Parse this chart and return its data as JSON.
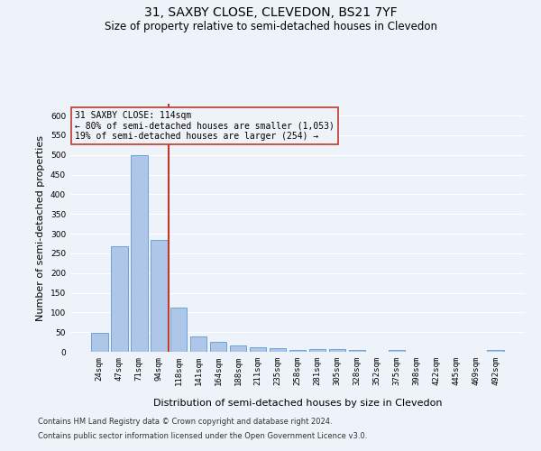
{
  "title": "31, SAXBY CLOSE, CLEVEDON, BS21 7YF",
  "subtitle": "Size of property relative to semi-detached houses in Clevedon",
  "xlabel": "Distribution of semi-detached houses by size in Clevedon",
  "ylabel": "Number of semi-detached properties",
  "categories": [
    "24sqm",
    "47sqm",
    "71sqm",
    "94sqm",
    "118sqm",
    "141sqm",
    "164sqm",
    "188sqm",
    "211sqm",
    "235sqm",
    "258sqm",
    "281sqm",
    "305sqm",
    "328sqm",
    "352sqm",
    "375sqm",
    "398sqm",
    "422sqm",
    "445sqm",
    "469sqm",
    "492sqm"
  ],
  "values": [
    48,
    267,
    500,
    283,
    113,
    40,
    26,
    15,
    12,
    10,
    5,
    8,
    8,
    5,
    0,
    4,
    0,
    0,
    0,
    0,
    5
  ],
  "bar_color": "#aec6e8",
  "bar_edge_color": "#5b9bd5",
  "property_line_index": 4,
  "property_line_color": "#c0392b",
  "annotation_line1": "31 SAXBY CLOSE: 114sqm",
  "annotation_line2": "← 80% of semi-detached houses are smaller (1,053)",
  "annotation_line3": "19% of semi-detached houses are larger (254) →",
  "annotation_box_edge_color": "#c0392b",
  "ylim": [
    0,
    630
  ],
  "yticks": [
    0,
    50,
    100,
    150,
    200,
    250,
    300,
    350,
    400,
    450,
    500,
    550,
    600
  ],
  "footer_line1": "Contains HM Land Registry data © Crown copyright and database right 2024.",
  "footer_line2": "Contains public sector information licensed under the Open Government Licence v3.0.",
  "bg_color": "#eef2f9",
  "grid_color": "#ffffff",
  "title_fontsize": 10,
  "subtitle_fontsize": 8.5,
  "axis_label_fontsize": 8,
  "tick_fontsize": 6.5,
  "annotation_fontsize": 7,
  "footer_fontsize": 6
}
